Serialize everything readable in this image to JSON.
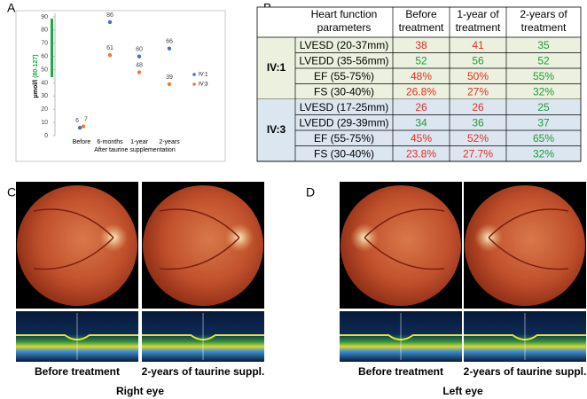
{
  "panel_labels": [
    "A",
    "B",
    "C",
    "D"
  ],
  "chart_data": {
    "type": "scatter",
    "categories": [
      "Before",
      "6-months",
      "1-year",
      "2-years"
    ],
    "series": [
      {
        "name": "IV:1",
        "color": "#4472c4",
        "values": [
          6,
          86,
          60,
          66
        ]
      },
      {
        "name": "IV:3",
        "color": "#ed7d31",
        "values": [
          7,
          61,
          48,
          39
        ]
      }
    ],
    "ylim": [
      0,
      90
    ],
    "yticks": [
      0,
      10,
      20,
      30,
      40,
      50,
      60,
      70,
      80,
      90
    ],
    "y_label": "μmol/l",
    "y_label_range": "(80-127)",
    "x_label": "After taurine supplementation",
    "legend": "right",
    "grid": false
  },
  "table": {
    "header": [
      [
        "Heart function",
        "parameters"
      ],
      [
        "Before",
        "treatment"
      ],
      [
        "1-year of",
        "treatment"
      ],
      [
        "2-years of",
        "treatment"
      ]
    ],
    "groups": [
      {
        "name": "IV:1",
        "background": "#ebf1de",
        "rows": [
          [
            "LVESD (20-37mm)",
            "38",
            "41",
            "35"
          ],
          [
            "LVEDD (35-56mm)",
            "52",
            "56",
            "52"
          ],
          [
            "EF (55-75%)",
            "48%",
            "50%",
            "55%"
          ],
          [
            "FS (30-40%)",
            "26.8%",
            "27%",
            "32%"
          ]
        ],
        "colors": [
          [
            "red",
            "red",
            "green"
          ],
          [
            "green",
            "green",
            "green"
          ],
          [
            "red",
            "red",
            "green"
          ],
          [
            "red",
            "red",
            "green"
          ]
        ]
      },
      {
        "name": "IV:3",
        "background": "#dce6f1",
        "rows": [
          [
            "LVESD (17-25mm)",
            "26",
            "26",
            "25"
          ],
          [
            "LVEDD (29-39mm)",
            "34",
            "36",
            "37"
          ],
          [
            "EF (55-75%)",
            "45%",
            "52%",
            "65%"
          ],
          [
            "FS (30-40%)",
            "23.8%",
            "27.7%",
            "32%"
          ]
        ],
        "colors": [
          [
            "red",
            "red",
            "green"
          ],
          [
            "green",
            "green",
            "green"
          ],
          [
            "red",
            "red",
            "green"
          ],
          [
            "red",
            "red",
            "green"
          ]
        ]
      }
    ]
  },
  "eyes": [
    {
      "captions": [
        "Before treatment",
        "2-years of taurine suppl."
      ],
      "title": "Right eye"
    },
    {
      "captions": [
        "Before treatment",
        "2-years of taurine suppl."
      ],
      "title": "Left eye"
    }
  ]
}
